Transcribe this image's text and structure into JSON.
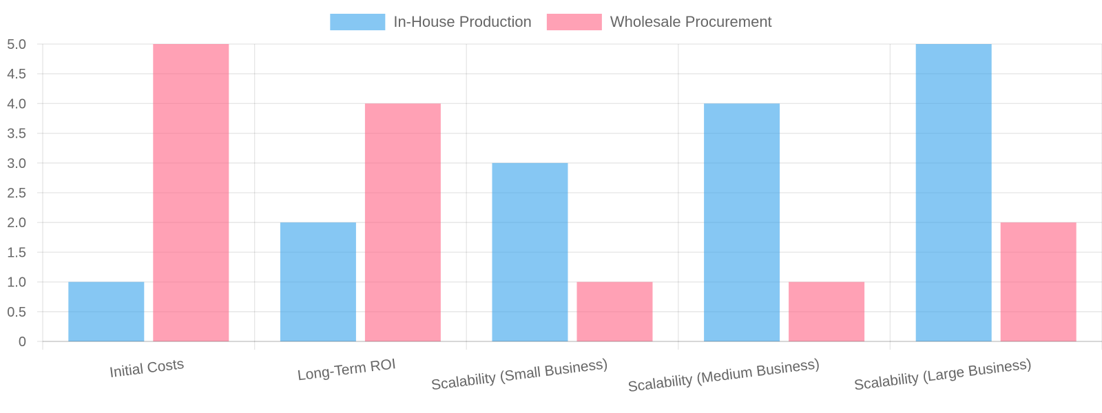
{
  "chart_data": {
    "type": "bar",
    "categories": [
      "Initial Costs",
      "Long-Term ROI",
      "Scalability (Small Business)",
      "Scalability (Medium Business)",
      "Scalability (Large Business)"
    ],
    "series": [
      {
        "name": "In-House Production",
        "values": [
          1,
          2,
          3,
          4,
          5
        ],
        "color": "#36a2eb"
      },
      {
        "name": "Wholesale Procurement",
        "values": [
          5,
          4,
          1,
          1,
          2
        ],
        "color": "#ff6384"
      }
    ],
    "y_ticks": [
      "0",
      "0.5",
      "1.0",
      "1.5",
      "2.0",
      "2.5",
      "3.0",
      "3.5",
      "4.0",
      "4.5",
      "5.0"
    ],
    "ylim": [
      0,
      5
    ],
    "grid": true,
    "legend_position": "top",
    "title": "",
    "xlabel": "",
    "ylabel": ""
  }
}
